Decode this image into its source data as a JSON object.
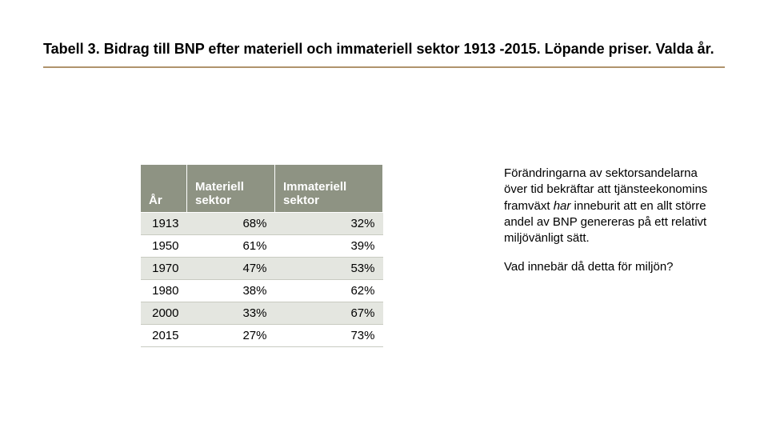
{
  "title": "Tabell 3. Bidrag till BNP efter materiell och immateriell sektor 1913 -2015. Löpande priser. Valda år.",
  "table": {
    "header_bg": "#8e9383",
    "header_fg": "#ffffff",
    "row_alt_bg": "#e4e6e0",
    "columns": {
      "year": "År",
      "material": "Materiell sektor",
      "immaterial": "Immateriell sektor"
    },
    "rows": [
      {
        "year": "1913",
        "material": "68%",
        "immaterial": "32%"
      },
      {
        "year": "1950",
        "material": "61%",
        "immaterial": "39%"
      },
      {
        "year": "1970",
        "material": "47%",
        "immaterial": "53%"
      },
      {
        "year": "1980",
        "material": "38%",
        "immaterial": "62%"
      },
      {
        "year": "2000",
        "material": "33%",
        "immaterial": "67%"
      },
      {
        "year": "2015",
        "material": "27%",
        "immaterial": "73%"
      }
    ]
  },
  "sidetext": {
    "p1_a": "Förändringarna av sektorsandelarna över tid bekräftar att tjänsteekonomins framväxt ",
    "p1_em": "har",
    "p1_b": " inneburit att en allt större andel av BNP genereras på ett relativt miljövänligt sätt.",
    "p2": "Vad innebär då detta för miljön?"
  }
}
